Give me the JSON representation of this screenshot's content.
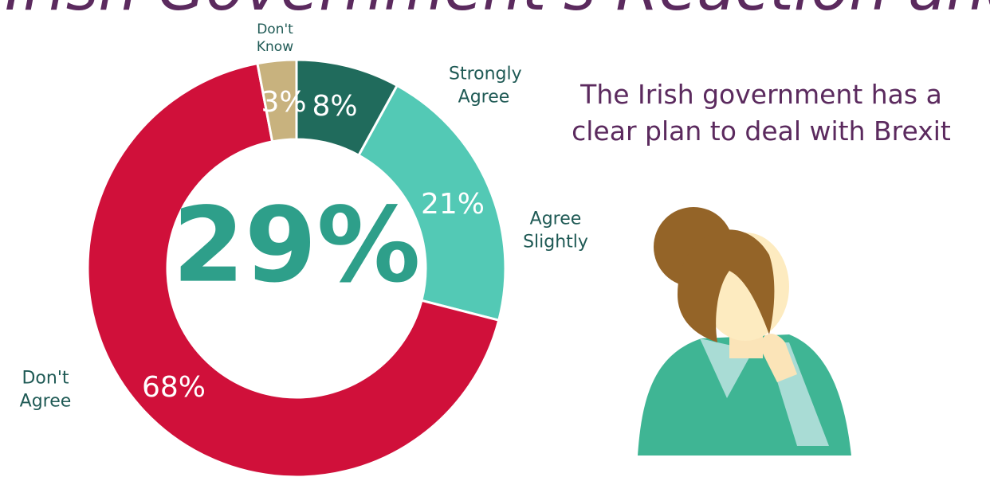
{
  "chart_data": {
    "type": "donut",
    "title": "The Irish Government's Reaction and its",
    "categories": [
      "Strongly Agree",
      "Agree Slightly",
      "Don't Agree",
      "Don't Know"
    ],
    "values": [
      8,
      21,
      68,
      3
    ],
    "value_labels": [
      "8%",
      "21%",
      "68%",
      "3%"
    ],
    "colors": [
      "#206b5c",
      "#53c9b5",
      "#d0103a",
      "#c8b27e"
    ],
    "center_label": "29%",
    "statement": "The Irish government has a clear plan to deal with Brexit"
  }
}
